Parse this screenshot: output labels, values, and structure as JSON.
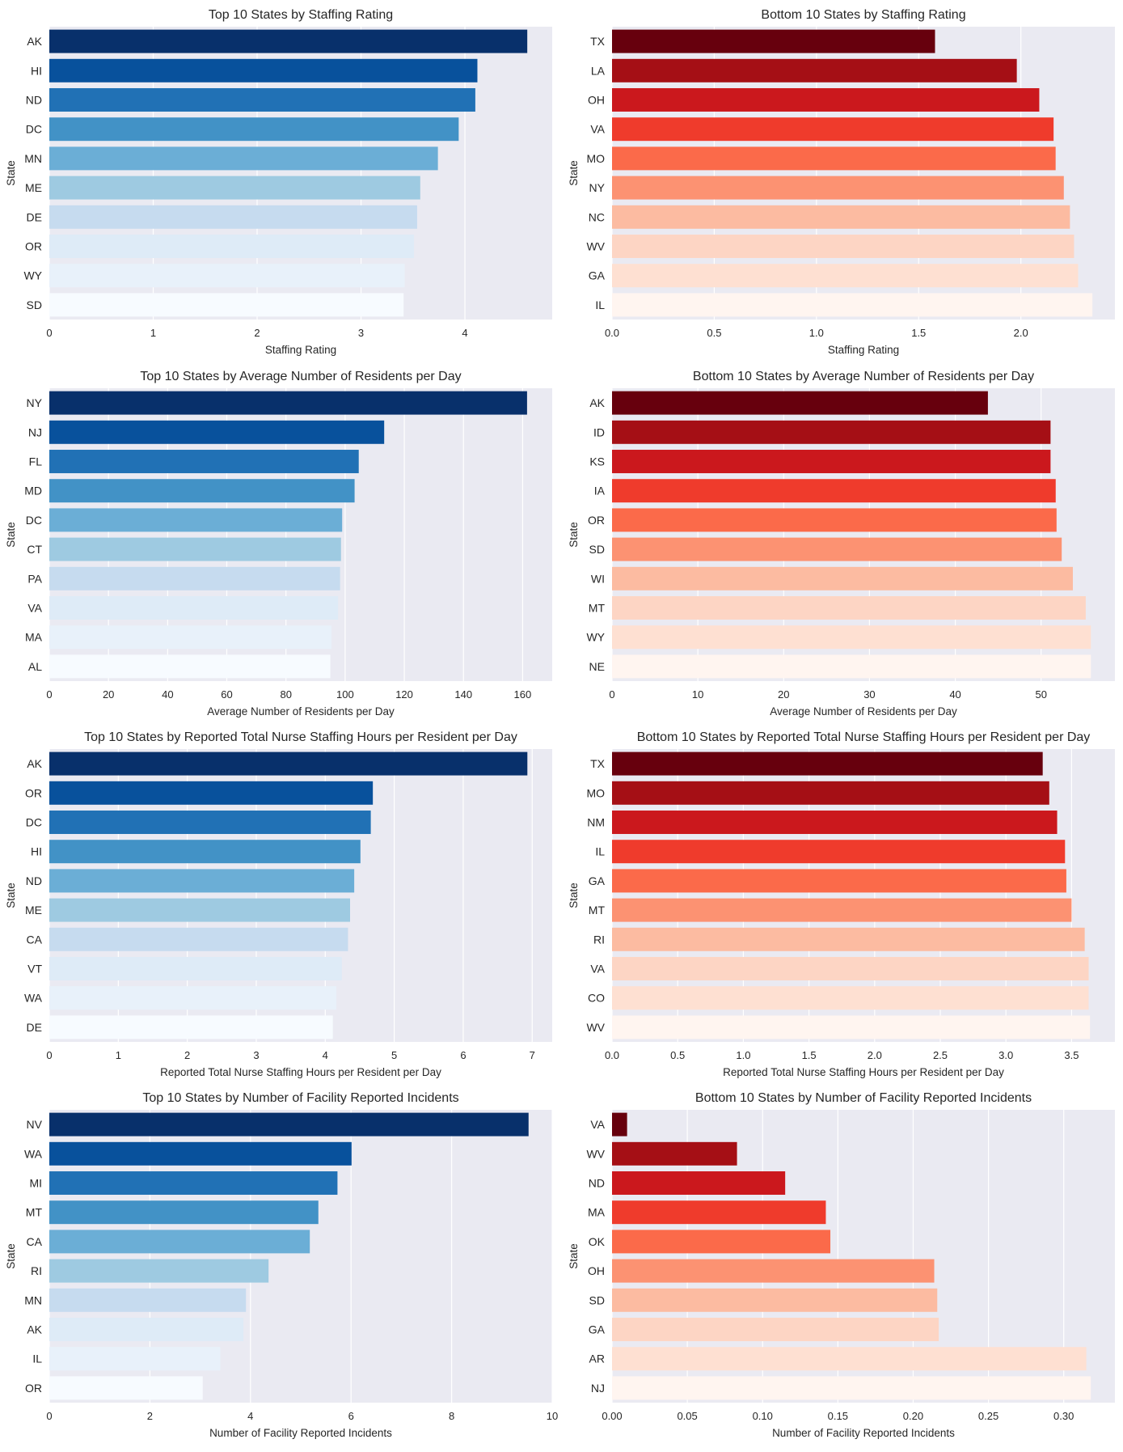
{
  "figure": {
    "charts": 8
  },
  "chart_data": [
    {
      "type": "bar",
      "orientation": "horizontal",
      "title": "Top 10 States by Staffing Rating",
      "xlabel": "Staffing Rating",
      "ylabel": "State",
      "categories": [
        "AK",
        "HI",
        "ND",
        "DC",
        "MN",
        "ME",
        "DE",
        "OR",
        "WY",
        "SD"
      ],
      "values": [
        4.6,
        4.12,
        4.1,
        3.94,
        3.74,
        3.57,
        3.54,
        3.51,
        3.42,
        3.41
      ],
      "xlim": [
        0,
        4.84
      ],
      "xticks": [
        0,
        1,
        2,
        3,
        4
      ],
      "tick_labels": [
        "0",
        "1",
        "2",
        "3",
        "4"
      ],
      "palette": "Blues_r",
      "grid": true
    },
    {
      "type": "bar",
      "orientation": "horizontal",
      "title": "Bottom 10 States by Staffing Rating",
      "xlabel": "Staffing Rating",
      "ylabel": "State",
      "categories": [
        "TX",
        "LA",
        "OH",
        "VA",
        "MO",
        "NY",
        "NC",
        "WV",
        "GA",
        "IL"
      ],
      "values": [
        1.58,
        1.98,
        2.09,
        2.16,
        2.17,
        2.21,
        2.24,
        2.26,
        2.28,
        2.35
      ],
      "xlim": [
        0,
        2.46
      ],
      "xticks": [
        0,
        0.5,
        1.0,
        1.5,
        2.0
      ],
      "tick_labels": [
        "0.0",
        "0.5",
        "1.0",
        "1.5",
        "2.0"
      ],
      "palette": "Reds_r",
      "grid": true
    },
    {
      "type": "bar",
      "orientation": "horizontal",
      "title": "Top 10 States by Average Number of Residents per Day",
      "xlabel": "Average Number of Residents per Day",
      "ylabel": "State",
      "categories": [
        "NY",
        "NJ",
        "FL",
        "MD",
        "DC",
        "CT",
        "PA",
        "VA",
        "MA",
        "AL"
      ],
      "values": [
        161.5,
        113.2,
        104.6,
        103.2,
        99.0,
        98.6,
        98.3,
        97.6,
        95.4,
        95.0
      ],
      "xlim": [
        0,
        170
      ],
      "xticks": [
        0,
        20,
        40,
        60,
        80,
        100,
        120,
        140,
        160
      ],
      "tick_labels": [
        "0",
        "20",
        "40",
        "60",
        "80",
        "100",
        "120",
        "140",
        "160"
      ],
      "palette": "Blues_r",
      "grid": true
    },
    {
      "type": "bar",
      "orientation": "horizontal",
      "title": "Bottom 10 States by Average Number of Residents per Day",
      "xlabel": "Average Number of Residents per Day",
      "ylabel": "State",
      "categories": [
        "AK",
        "ID",
        "KS",
        "IA",
        "OR",
        "SD",
        "WI",
        "MT",
        "WY",
        "NE"
      ],
      "values": [
        43.8,
        51.1,
        51.1,
        51.7,
        51.8,
        52.4,
        53.7,
        55.2,
        55.8,
        55.8
      ],
      "xlim": [
        0,
        58.6
      ],
      "xticks": [
        0,
        10,
        20,
        30,
        40,
        50
      ],
      "tick_labels": [
        "0",
        "10",
        "20",
        "30",
        "40",
        "50"
      ],
      "palette": "Reds_r",
      "grid": true
    },
    {
      "type": "bar",
      "orientation": "horizontal",
      "title": "Top 10 States by Reported Total Nurse Staffing Hours per Resident per Day",
      "xlabel": "Reported Total Nurse Staffing Hours per Resident per Day",
      "ylabel": "State",
      "categories": [
        "AK",
        "OR",
        "DC",
        "HI",
        "ND",
        "ME",
        "CA",
        "VT",
        "WA",
        "DE"
      ],
      "values": [
        6.93,
        4.69,
        4.66,
        4.51,
        4.42,
        4.36,
        4.33,
        4.24,
        4.16,
        4.11
      ],
      "xlim": [
        0,
        7.29
      ],
      "xticks": [
        0,
        1,
        2,
        3,
        4,
        5,
        6,
        7
      ],
      "tick_labels": [
        "0",
        "1",
        "2",
        "3",
        "4",
        "5",
        "6",
        "7"
      ],
      "palette": "Blues_r",
      "grid": true
    },
    {
      "type": "bar",
      "orientation": "horizontal",
      "title": "Bottom 10 States by Reported Total Nurse Staffing Hours per Resident per Day",
      "xlabel": "Reported Total Nurse Staffing Hours per Resident per Day",
      "ylabel": "State",
      "categories": [
        "TX",
        "MO",
        "NM",
        "IL",
        "GA",
        "MT",
        "RI",
        "VA",
        "CO",
        "WV"
      ],
      "values": [
        3.28,
        3.33,
        3.39,
        3.45,
        3.46,
        3.5,
        3.6,
        3.63,
        3.63,
        3.64
      ],
      "xlim": [
        0,
        3.83
      ],
      "xticks": [
        0,
        0.5,
        1.0,
        1.5,
        2.0,
        2.5,
        3.0,
        3.5
      ],
      "tick_labels": [
        "0.0",
        "0.5",
        "1.0",
        "1.5",
        "2.0",
        "2.5",
        "3.0",
        "3.5"
      ],
      "palette": "Reds_r",
      "grid": true
    },
    {
      "type": "bar",
      "orientation": "horizontal",
      "title": "Top 10 States by Number of Facility Reported Incidents",
      "xlabel": "Number of Facility Reported Incidents",
      "ylabel": "State",
      "categories": [
        "NV",
        "WA",
        "MI",
        "MT",
        "CA",
        "RI",
        "MN",
        "AK",
        "IL",
        "OR"
      ],
      "values": [
        9.53,
        6.01,
        5.73,
        5.35,
        5.18,
        4.36,
        3.91,
        3.86,
        3.4,
        3.05
      ],
      "xlim": [
        0,
        10
      ],
      "xticks": [
        0,
        2,
        4,
        6,
        8,
        10
      ],
      "tick_labels": [
        "0",
        "2",
        "4",
        "6",
        "8",
        "10"
      ],
      "palette": "Blues_r",
      "grid": true
    },
    {
      "type": "bar",
      "orientation": "horizontal",
      "title": "Bottom 10 States by Number of Facility Reported Incidents",
      "xlabel": "Number of Facility Reported Incidents",
      "ylabel": "State",
      "categories": [
        "VA",
        "WV",
        "ND",
        "MA",
        "OK",
        "OH",
        "SD",
        "GA",
        "AR",
        "NJ"
      ],
      "values": [
        0.01,
        0.083,
        0.115,
        0.142,
        0.145,
        0.214,
        0.216,
        0.217,
        0.315,
        0.318
      ],
      "xlim": [
        0,
        0.334
      ],
      "xticks": [
        0,
        0.05,
        0.1,
        0.15,
        0.2,
        0.25,
        0.3
      ],
      "tick_labels": [
        "0.00",
        "0.05",
        "0.10",
        "0.15",
        "0.20",
        "0.25",
        "0.30"
      ],
      "palette": "Reds_r",
      "grid": true
    }
  ],
  "palettes": {
    "Blues_r": [
      "#08306b",
      "#08519c",
      "#2171b5",
      "#4292c6",
      "#6baed6",
      "#9ecae1",
      "#c6dbef",
      "#deebf7",
      "#e8f1fa",
      "#f7fbff"
    ],
    "Reds_r": [
      "#67000d",
      "#a50f15",
      "#cb181d",
      "#ef3b2c",
      "#fb6a4a",
      "#fc9272",
      "#fcbba1",
      "#fdd5c4",
      "#fee0d2",
      "#fff5f0"
    ]
  },
  "theme": {
    "plot_bg": "#eaeaf2",
    "grid_color": "#ffffff",
    "text_color": "#262626"
  }
}
